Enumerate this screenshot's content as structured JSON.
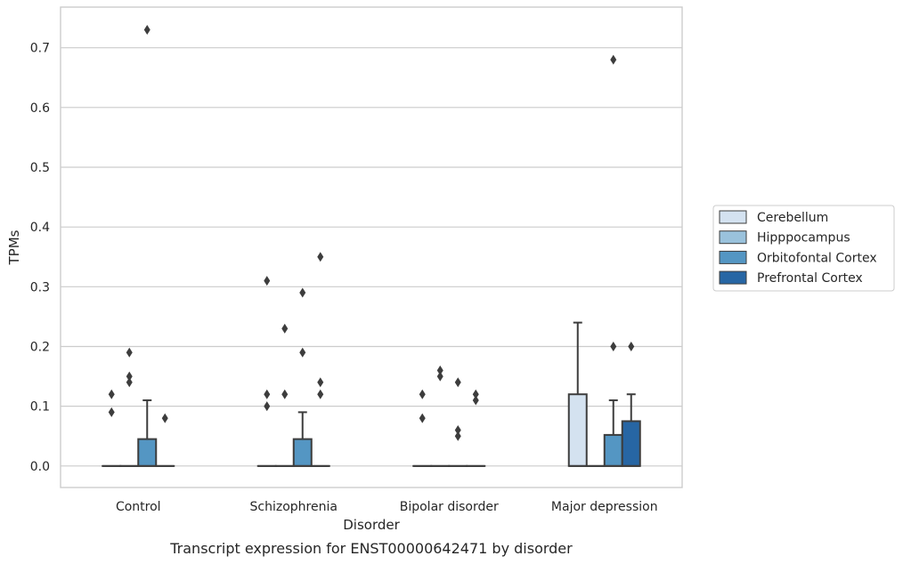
{
  "caption": "Transcript expression for ENST00000642471 by disorder",
  "chart_data": {
    "type": "box",
    "title": "",
    "xlabel": "Disorder",
    "ylabel": "TPMs",
    "ylim": [
      -0.036,
      0.768
    ],
    "yticks": [
      "0.0",
      "0.1",
      "0.2",
      "0.3",
      "0.4",
      "0.5",
      "0.6",
      "0.7"
    ],
    "grid": "horizontal",
    "legend_position": "right",
    "categories": [
      "Control",
      "Schizophrenia",
      "Bipolar disorder",
      "Major depression"
    ],
    "series": [
      {
        "name": "Cerebellum",
        "color": "#d4e2f0",
        "boxes": [
          {
            "q1": 0,
            "median": 0,
            "q3": 0,
            "whisker_low": 0,
            "whisker_high": 0,
            "outliers": [
              0.12,
              0.09
            ]
          },
          {
            "q1": 0,
            "median": 0,
            "q3": 0,
            "whisker_low": 0,
            "whisker_high": 0,
            "outliers": [
              0.31,
              0.12,
              0.1
            ]
          },
          {
            "q1": 0,
            "median": 0,
            "q3": 0,
            "whisker_low": 0,
            "whisker_high": 0,
            "outliers": [
              0.12,
              0.08
            ]
          },
          {
            "q1": 0,
            "median": 0,
            "q3": 0.12,
            "whisker_low": 0,
            "whisker_high": 0.24,
            "outliers": []
          }
        ]
      },
      {
        "name": "Hipppocampus",
        "color": "#9ac2dc",
        "boxes": [
          {
            "q1": 0,
            "median": 0,
            "q3": 0,
            "whisker_low": 0,
            "whisker_high": 0,
            "outliers": [
              0.19,
              0.15,
              0.14
            ]
          },
          {
            "q1": 0,
            "median": 0,
            "q3": 0,
            "whisker_low": 0,
            "whisker_high": 0,
            "outliers": [
              0.23,
              0.12
            ]
          },
          {
            "q1": 0,
            "median": 0,
            "q3": 0,
            "whisker_low": 0,
            "whisker_high": 0,
            "outliers": [
              0.16,
              0.15
            ]
          },
          {
            "q1": 0,
            "median": 0,
            "q3": 0,
            "whisker_low": 0,
            "whisker_high": 0,
            "outliers": []
          }
        ]
      },
      {
        "name": "Orbitofontal Cortex",
        "color": "#5496c3",
        "boxes": [
          {
            "q1": 0,
            "median": 0,
            "q3": 0.045,
            "whisker_low": 0,
            "whisker_high": 0.11,
            "outliers": [
              0.73
            ]
          },
          {
            "q1": 0,
            "median": 0,
            "q3": 0.045,
            "whisker_low": 0,
            "whisker_high": 0.09,
            "outliers": [
              0.29,
              0.19
            ]
          },
          {
            "q1": 0,
            "median": 0,
            "q3": 0,
            "whisker_low": 0,
            "whisker_high": 0,
            "outliers": [
              0.14,
              0.06,
              0.05
            ]
          },
          {
            "q1": 0,
            "median": 0,
            "q3": 0.052,
            "whisker_low": 0,
            "whisker_high": 0.11,
            "outliers": [
              0.68,
              0.2
            ]
          }
        ]
      },
      {
        "name": "Prefrontal Cortex",
        "color": "#2766a4",
        "boxes": [
          {
            "q1": 0,
            "median": 0,
            "q3": 0,
            "whisker_low": 0,
            "whisker_high": 0,
            "outliers": [
              0.08
            ]
          },
          {
            "q1": 0,
            "median": 0,
            "q3": 0,
            "whisker_low": 0,
            "whisker_high": 0,
            "outliers": [
              0.35,
              0.14,
              0.12
            ]
          },
          {
            "q1": 0,
            "median": 0,
            "q3": 0,
            "whisker_low": 0,
            "whisker_high": 0,
            "outliers": [
              0.12,
              0.11
            ]
          },
          {
            "q1": 0,
            "median": 0,
            "q3": 0.075,
            "whisker_low": 0,
            "whisker_high": 0.12,
            "outliers": [
              0.2
            ]
          }
        ]
      }
    ]
  }
}
